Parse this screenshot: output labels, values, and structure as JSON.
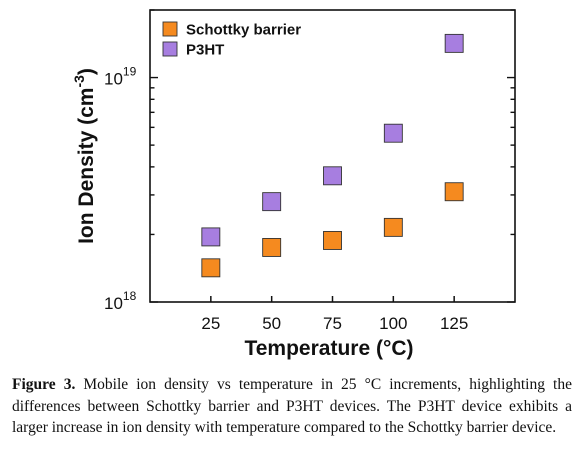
{
  "chart_data": {
    "type": "scatter",
    "xlabel": "Temperature (°C)",
    "ylabel_main": "Ion Density (cm",
    "ylabel_exp": "-3",
    "ylabel_close": ")",
    "x_ticks": [
      25,
      50,
      75,
      100,
      125
    ],
    "xlim": [
      0,
      150
    ],
    "yscale": "log",
    "ylim": [
      1e+18,
      2e+19
    ],
    "y_tick_labels": [
      {
        "base": "10",
        "exp": "18",
        "value": 1e+18
      },
      {
        "base": "10",
        "exp": "19",
        "value": 1e+19
      }
    ],
    "legend_position": "top-left",
    "series": [
      {
        "name": "Schottky barrier",
        "color": "#f58a1f",
        "x": [
          25,
          50,
          75,
          100,
          125
        ],
        "y": [
          1.42e+18,
          1.75e+18,
          1.88e+18,
          2.15e+18,
          3.1e+18
        ]
      },
      {
        "name": "P3HT",
        "color": "#a77ee0",
        "x": [
          25,
          50,
          75,
          100,
          125
        ],
        "y": [
          1.95e+18,
          2.8e+18,
          3.65e+18,
          5.65e+18,
          1.42e+19
        ]
      }
    ]
  },
  "caption": {
    "label": "Figure 3.",
    "text": " Mobile ion density vs temperature in 25 °C increments, highlighting the differences between Schottky barrier and P3HT devices. The P3HT device exhibits a larger increase in ion density with temperature compared to the Schottky barrier device."
  }
}
